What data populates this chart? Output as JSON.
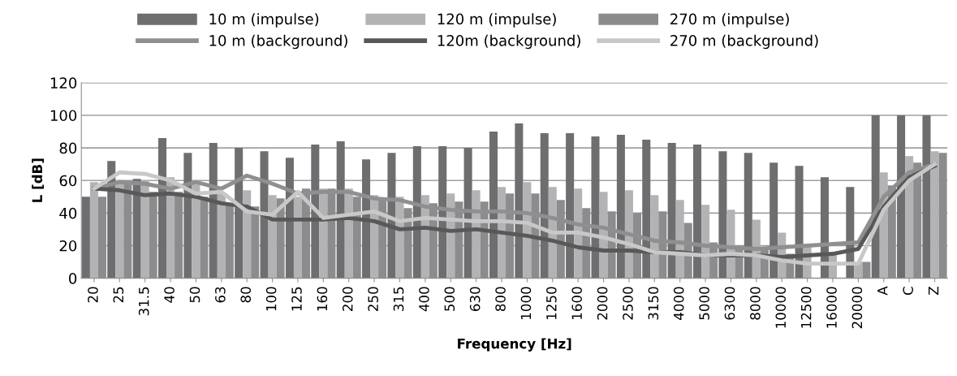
{
  "chart_data": {
    "type": "bar",
    "xlabel": "Frequency [Hz]",
    "ylabel": "L [dB]",
    "categories": [
      "20",
      "25",
      "31.5",
      "40",
      "50",
      "63",
      "80",
      "100",
      "125",
      "160",
      "200",
      "250",
      "315",
      "400",
      "500",
      "630",
      "800",
      "1000",
      "1250",
      "1600",
      "2000",
      "2500",
      "3150",
      "4000",
      "5000",
      "6300",
      "8000",
      "10000",
      "12500",
      "16000",
      "20000",
      "A",
      "C",
      "Z"
    ],
    "series": [
      {
        "name": "10 m (impulse)",
        "color": "#6e6e70",
        "values": [
          50,
          72,
          61,
          86,
          77,
          83,
          80,
          78,
          74,
          82,
          84,
          73,
          77,
          81,
          81,
          80,
          90,
          95,
          89,
          89,
          87,
          88,
          85,
          83,
          82,
          78,
          77,
          71,
          69,
          62,
          56,
          100,
          100,
          100
        ]
      },
      {
        "name": "120 m (impulse)",
        "color": "#b3b3b5",
        "values": [
          59,
          60,
          60,
          62,
          60,
          52,
          54,
          51,
          50,
          55,
          55,
          51,
          50,
          51,
          52,
          54,
          56,
          59,
          56,
          55,
          53,
          54,
          51,
          48,
          45,
          42,
          36,
          28,
          20,
          15,
          10,
          65,
          75,
          78
        ]
      },
      {
        "name": "270 m (impulse)",
        "color": "#8c8c8e",
        "values": [
          50,
          59,
          53,
          53,
          50,
          46,
          44,
          49,
          55,
          55,
          50,
          49,
          43,
          46,
          47,
          47,
          52,
          52,
          48,
          43,
          41,
          40,
          41,
          34,
          22,
          20,
          18,
          15,
          null,
          null,
          10,
          57,
          71,
          77
        ]
      },
      {
        "name": "10 m (background)",
        "type": "line",
        "color": "#8f8f91",
        "values": [
          55,
          59,
          58,
          55,
          59,
          55,
          63,
          58,
          52,
          53,
          53,
          49,
          48,
          44,
          42,
          41,
          41,
          40,
          37,
          33,
          31,
          27,
          23,
          22,
          20,
          19,
          18,
          19,
          20,
          21,
          22,
          50,
          65,
          70
        ]
      },
      {
        "name": "120m (background)",
        "type": "line",
        "color": "#585858",
        "values": [
          55,
          54,
          51,
          52,
          50,
          46,
          44,
          36,
          36,
          36,
          37,
          35,
          30,
          31,
          29,
          30,
          28,
          26,
          23,
          19,
          17,
          17,
          16,
          16,
          14,
          14,
          14,
          13,
          14,
          15,
          18,
          44,
          62,
          69
        ]
      },
      {
        "name": "270 m (background)",
        "type": "line",
        "color": "#c8c8c8",
        "values": [
          55,
          65,
          64,
          60,
          52,
          53,
          41,
          39,
          53,
          37,
          39,
          41,
          35,
          37,
          36,
          35,
          35,
          34,
          28,
          28,
          25,
          21,
          16,
          15,
          14,
          15,
          14,
          11,
          9,
          9,
          9,
          42,
          60,
          70
        ]
      }
    ],
    "ylim": [
      0,
      120
    ],
    "yticks": [
      0,
      20,
      40,
      60,
      80,
      100,
      120
    ],
    "grid": "y",
    "legend": "top",
    "marker": "none",
    "line_style": "solid"
  }
}
